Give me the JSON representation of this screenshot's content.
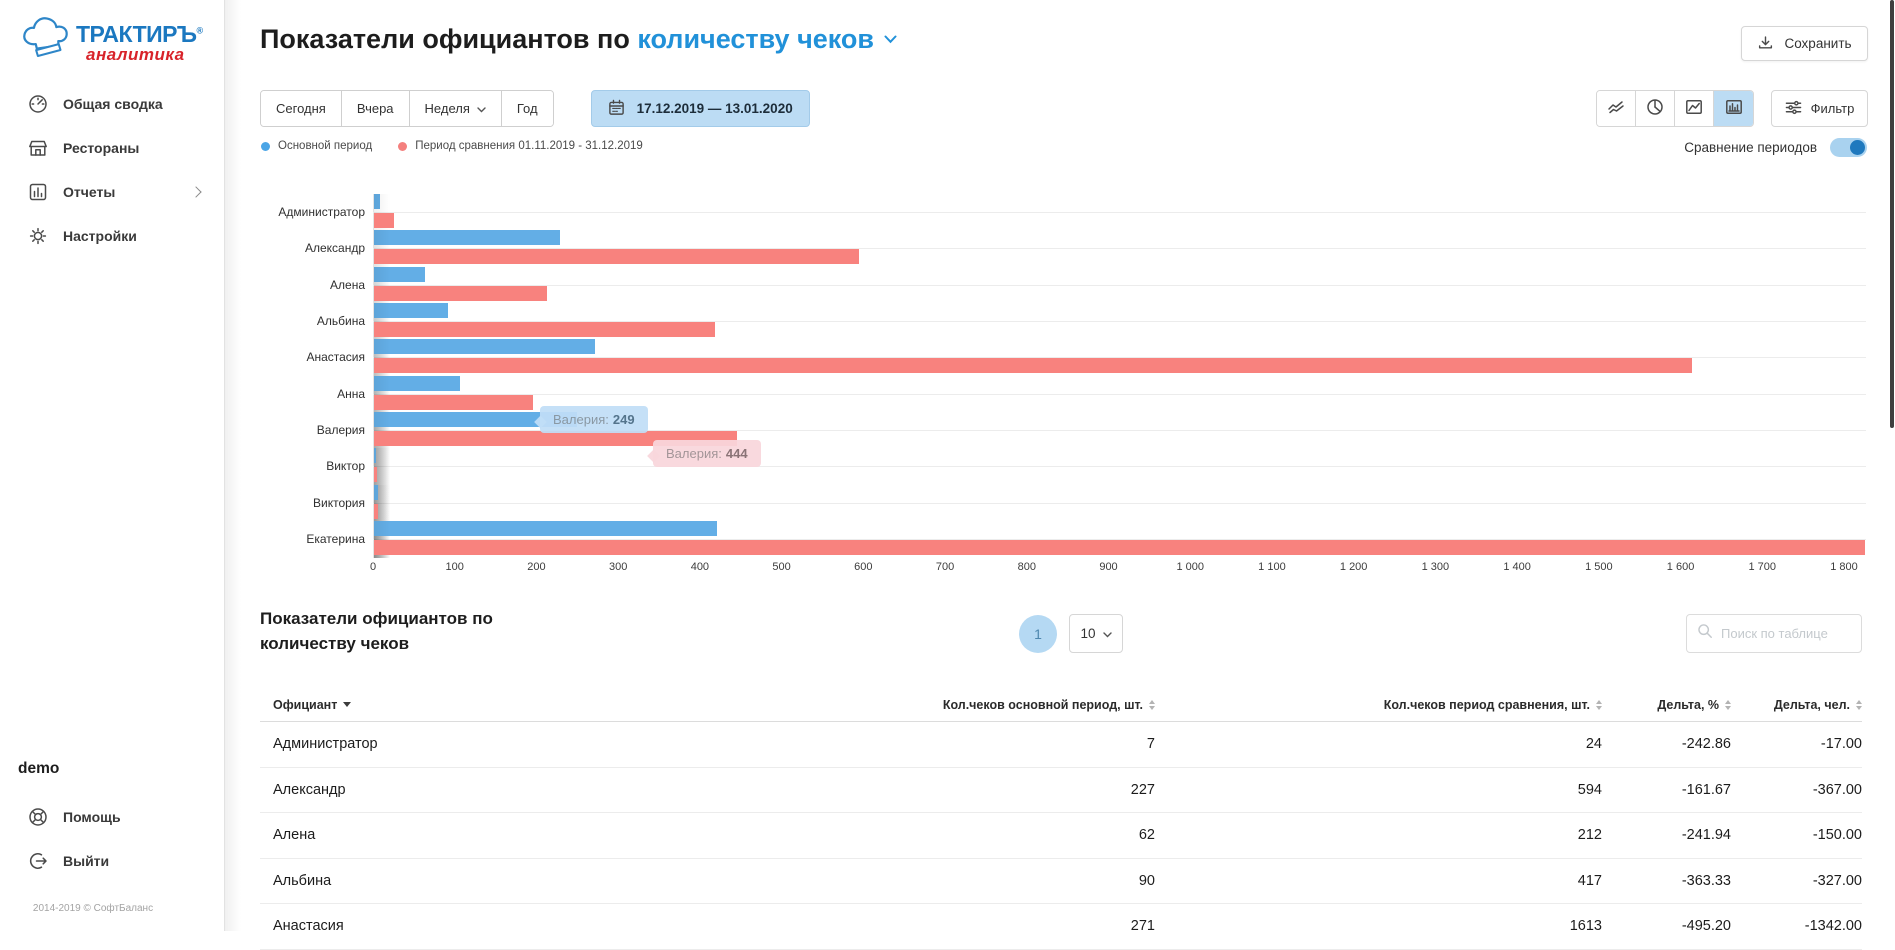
{
  "app": {
    "brand": "ТРАКТИРЪ",
    "brand_reg": "®",
    "brand_sub": "аналитика",
    "user": "demo",
    "copyright": "2014-2019 © СофтБаланс"
  },
  "sidebar": {
    "items": [
      {
        "label": "Общая сводка",
        "icon": "gauge"
      },
      {
        "label": "Рестораны",
        "icon": "storefront"
      },
      {
        "label": "Отчеты",
        "icon": "bar-chart",
        "has_submenu": true
      },
      {
        "label": "Настройки",
        "icon": "gear"
      }
    ],
    "footer": [
      {
        "label": "Помощь",
        "icon": "lifebuoy"
      },
      {
        "label": "Выйти",
        "icon": "logout"
      }
    ]
  },
  "header": {
    "title_prefix": "Показатели официантов по ",
    "title_metric": "количеству чеков",
    "save_label": "Сохранить"
  },
  "controls": {
    "periods": [
      "Сегодня",
      "Вчера",
      "Неделя",
      "Год"
    ],
    "date_range": "17.12.2019 — 13.01.2020",
    "filter_label": "Фильтр",
    "compare_label": "Сравнение периодов",
    "compare_on": true
  },
  "legend": {
    "main": "Основной период",
    "compare": "Период сравнения 01.11.2019 - 31.12.2019"
  },
  "chart_data": {
    "type": "bar",
    "orientation": "horizontal",
    "title": "Показатели официантов по количеству чеков",
    "categories": [
      "Администратор",
      "Александр",
      "Алена",
      "Альбина",
      "Анастасия",
      "Анна",
      "Валерия",
      "Виктор",
      "Виктория",
      "Екатерина"
    ],
    "series": [
      {
        "name": "Основной период",
        "color": "#63AEE6",
        "values": [
          7,
          227,
          62,
          90,
          271,
          105,
          249,
          2,
          5,
          420
        ]
      },
      {
        "name": "Период сравнения 01.11.2019 - 31.12.2019",
        "color": "#F8827E",
        "values": [
          24,
          594,
          212,
          417,
          1613,
          195,
          444,
          4,
          5,
          1825
        ]
      }
    ],
    "xlim": [
      0,
      1800
    ],
    "x_ticks": [
      "0",
      "100",
      "200",
      "300",
      "400",
      "500",
      "600",
      "700",
      "800",
      "900",
      "1 000",
      "1 100",
      "1 200",
      "1 300",
      "1 400",
      "1 500",
      "1 600",
      "1 700",
      "1 800"
    ],
    "grid": "horizontal lines per category",
    "legend_position": "top-left",
    "note": "Значения Анна, Виктор, Виктория, Екатерина оценены по длине столбцов; столбец сравнения Екатерина обрезан правым краем (>1800)",
    "tooltips": [
      {
        "label": "Валерия:",
        "value": "249",
        "series": "Основной период"
      },
      {
        "label": "Валерия:",
        "value": "444",
        "series": "Период сравнения"
      }
    ]
  },
  "table": {
    "title_line1": "Показатели официантов по",
    "title_line2": "количеству чеков",
    "page": "1",
    "page_size": "10",
    "search_placeholder": "Поиск по таблице",
    "columns": [
      "Официант",
      "Кол.чеков основной период, шт.",
      "Кол.чеков период сравнения, шт.",
      "Дельта, %",
      "Дельта, чел."
    ],
    "rows": [
      [
        "Администратор",
        "7",
        "24",
        "-242.86",
        "-17.00"
      ],
      [
        "Александр",
        "227",
        "594",
        "-161.67",
        "-367.00"
      ],
      [
        "Алена",
        "62",
        "212",
        "-241.94",
        "-150.00"
      ],
      [
        "Альбина",
        "90",
        "417",
        "-363.33",
        "-327.00"
      ],
      [
        "Анастасия",
        "271",
        "1613",
        "-495.20",
        "-1342.00"
      ]
    ]
  },
  "colors": {
    "primary_blue": "#2191D9",
    "bar_main": "#63AEE6",
    "bar_compare": "#F8827E",
    "selected_bg": "#BCDCF4",
    "toggle_knob": "#1F79BE",
    "logo_blue": "#1B78C0",
    "logo_red": "#D8232A"
  }
}
